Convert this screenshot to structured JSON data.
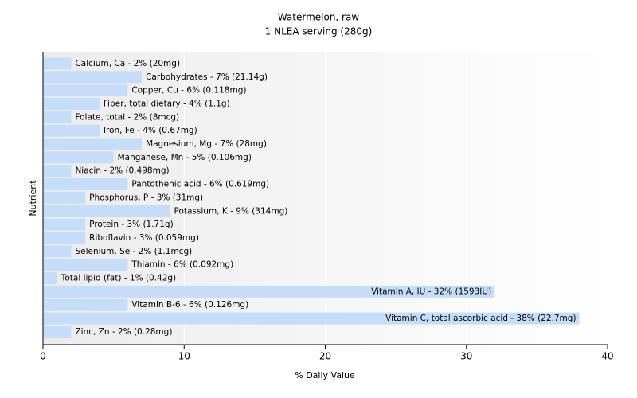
{
  "chart_data": {
    "type": "hbar",
    "title": "Watermelon, raw",
    "subtitle": "1 NLEA serving (280g)",
    "x_label": "% Daily Value",
    "y_label": "Nutrient",
    "categories": [
      "Calcium, Ca - 2% (20mg)",
      "Carbohydrates - 7% (21.14g)",
      "Copper, Cu - 6% (0.118mg)",
      "Fiber, total dietary - 4% (1.1g)",
      "Folate, total - 2% (8mcg)",
      "Iron, Fe - 4% (0.67mg)",
      "Magnesium, Mg - 7% (28mg)",
      "Manganese, Mn - 5% (0.106mg)",
      "Niacin - 2% (0.498mg)",
      "Pantothenic acid - 6% (0.619mg)",
      "Phosphorus, P - 3% (31mg)",
      "Potassium, K - 9% (314mg)",
      "Protein - 3% (1.71g)",
      "Riboflavin - 3% (0.059mg)",
      "Selenium, Se - 2% (1.1mcg)",
      "Thiamin - 6% (0.092mg)",
      "Total lipid (fat) - 1% (0.42g)",
      "Vitamin A, IU - 32% (1593IU)",
      "Vitamin B-6 - 6% (0.126mg)",
      "Vitamin C, total ascorbic acid - 38% (22.7mg)",
      "Zinc, Zn - 2% (0.28mg)"
    ],
    "values": [
      2,
      7,
      6,
      4,
      2,
      4,
      7,
      5,
      2,
      6,
      3,
      9,
      3,
      3,
      2,
      6,
      1,
      32,
      6,
      38,
      2
    ],
    "color": "#c6ddf9",
    "xlim": [
      0,
      40
    ],
    "xticks": [
      0,
      10,
      20,
      30,
      40
    ],
    "grid": true
  }
}
